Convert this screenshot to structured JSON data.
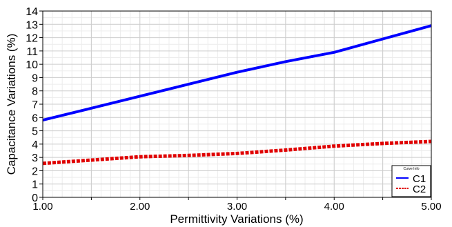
{
  "chart_data": {
    "type": "line",
    "xlabel": "Permittivity Variations (%)",
    "ylabel": "Capacitance Variations (%)",
    "xlim": [
      1.0,
      5.0
    ],
    "ylim": [
      0,
      14
    ],
    "x_ticks": [
      1.0,
      1.5,
      2.0,
      2.5,
      3.0,
      3.5,
      4.0,
      4.5,
      5.0
    ],
    "x_tick_labels": [
      "1.00",
      "",
      "2.00",
      "",
      "3.00",
      "",
      "4.00",
      "",
      "5.00"
    ],
    "y_ticks": [
      0,
      1,
      2,
      3,
      4,
      5,
      6,
      7,
      8,
      9,
      10,
      11,
      12,
      13,
      14
    ],
    "y_tick_labels": [
      "0",
      "1",
      "2",
      "3",
      "4",
      "5",
      "6",
      "7",
      "8",
      "9",
      "10",
      "11",
      "12",
      "13",
      "14"
    ],
    "grid": true,
    "legend_placement": "bottom-right",
    "legend_title": "Curve Info",
    "series": [
      {
        "name": "C1",
        "color": "#0000ff",
        "style": "solid",
        "x": [
          1.0,
          1.5,
          2.0,
          2.5,
          3.0,
          3.5,
          4.0,
          4.5,
          5.0
        ],
        "y": [
          5.8,
          6.7,
          7.6,
          8.5,
          9.4,
          10.2,
          10.9,
          11.9,
          12.9
        ]
      },
      {
        "name": "C2",
        "color": "#e00000",
        "style": "dashed",
        "x": [
          1.0,
          1.5,
          2.0,
          2.5,
          3.0,
          3.5,
          4.0,
          4.5,
          5.0
        ],
        "y": [
          2.55,
          2.8,
          3.05,
          3.15,
          3.3,
          3.55,
          3.85,
          4.05,
          4.2
        ]
      }
    ]
  }
}
